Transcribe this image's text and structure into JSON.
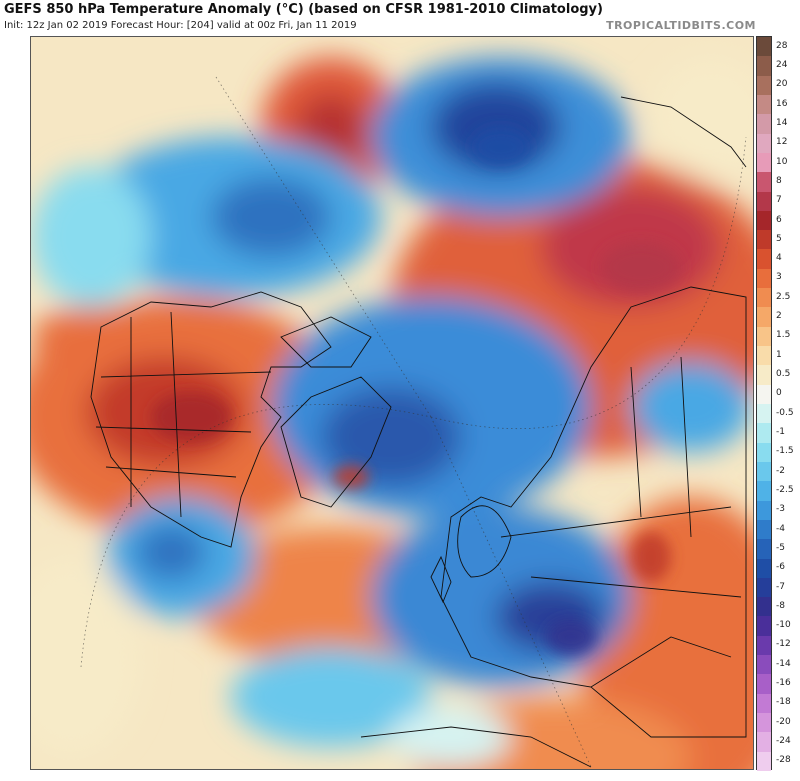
{
  "header": {
    "title": "GEFS 850 hPa Temperature Anomaly (°C) (based on CFSR 1981-2010 Climatology)",
    "subtitle": "Init: 12z Jan 02 2019   Forecast Hour: [204]   valid at 00z Fri, Jan 11 2019",
    "brand": "TROPICALTIDBITS.COM"
  },
  "colorbar": {
    "labels": [
      "28",
      "24",
      "20",
      "16",
      "14",
      "12",
      "10",
      "8",
      "7",
      "6",
      "5",
      "4",
      "3",
      "2.5",
      "2",
      "1.5",
      "1",
      "0.5",
      "0",
      "-0.5",
      "-1",
      "-1.5",
      "-2",
      "-2.5",
      "-3",
      "-4",
      "-5",
      "-6",
      "-7",
      "-8",
      "-10",
      "-12",
      "-14",
      "-16",
      "-18",
      "-20",
      "-24",
      "-28"
    ],
    "colors": [
      "#6b4a3a",
      "#8c5c4a",
      "#a8705e",
      "#c48a85",
      "#d39aa8",
      "#e0a8bf",
      "#e79bb8",
      "#c9566f",
      "#b3384a",
      "#a5262a",
      "#bf3a2a",
      "#d9522f",
      "#e86e3c",
      "#f08c50",
      "#f5a868",
      "#f8c488",
      "#f9dcaa",
      "#f7ebc8",
      "#f5f5f0",
      "#d6f3f1",
      "#aeeaf0",
      "#89dcef",
      "#6ac8ec",
      "#4fb2e7",
      "#3d98dc",
      "#2f7cca",
      "#2663b8",
      "#1f4ea6",
      "#253e9a",
      "#33308e",
      "#4a2f9a",
      "#6a3aac",
      "#8a4cbc",
      "#a85fc8",
      "#c27ad4",
      "#d595dc",
      "#e3b0e4",
      "#efcdee"
    ]
  }
}
